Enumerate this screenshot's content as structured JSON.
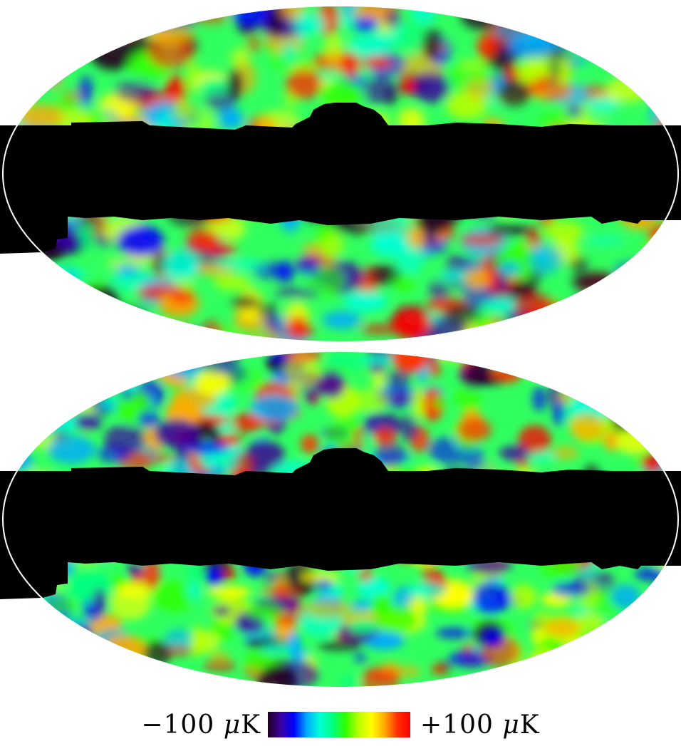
{
  "figure": {
    "maps": [
      {
        "id": "top",
        "projection": "mollweide",
        "mask": "galactic-plane"
      },
      {
        "id": "bottom",
        "projection": "mollweide",
        "mask": "galactic-plane"
      }
    ],
    "colorbar": {
      "min_label": "−100",
      "max_label": "+100",
      "unit_prefix": "μ",
      "unit": "K",
      "colormap": [
        "#200020",
        "#3a00a0",
        "#0000ff",
        "#00aaff",
        "#00ffd8",
        "#00ff80",
        "#30ff00",
        "#b8ff00",
        "#ffff00",
        "#ffaa00",
        "#ff3000",
        "#ff0000"
      ]
    }
  }
}
